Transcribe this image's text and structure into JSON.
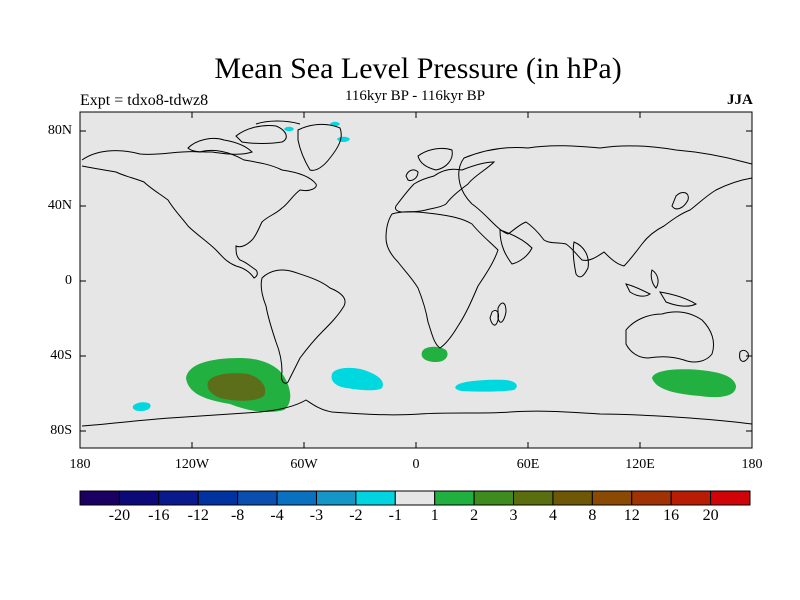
{
  "title": "Mean Sea Level Pressure (in hPa)",
  "subtitle": "116kyr BP - 116kyr BP",
  "experiment_label": "Expt = tdxo8-tdwz8",
  "season": "JJA",
  "map": {
    "background": "#e6e6e6",
    "coastline_color": "#000000",
    "lat_ticks": [
      "80N",
      "40N",
      "0",
      "40S",
      "80S"
    ],
    "lon_ticks": [
      "180",
      "120W",
      "60W",
      "0",
      "60E",
      "120E",
      "180"
    ]
  },
  "colorbar": {
    "colors": [
      "#1a0060",
      "#0c0a78",
      "#0a1a8c",
      "#0033a0",
      "#0a4fb0",
      "#0a70c0",
      "#1496c8",
      "#00d4e0",
      "#e6e6e6",
      "#20b040",
      "#3e8c1e",
      "#5a6e10",
      "#6e5808",
      "#8a4a04",
      "#a03204",
      "#b81c04",
      "#d00408"
    ],
    "labels": [
      "-20",
      "-16",
      "-12",
      "-8",
      "-4",
      "-3",
      "-2",
      "-1",
      "1",
      "2",
      "3",
      "4",
      "8",
      "12",
      "16",
      "20"
    ]
  },
  "anomaly_legend": {
    "cyan": "#00d8e0",
    "green": "#22b040",
    "olive": "#5c6e1a"
  }
}
